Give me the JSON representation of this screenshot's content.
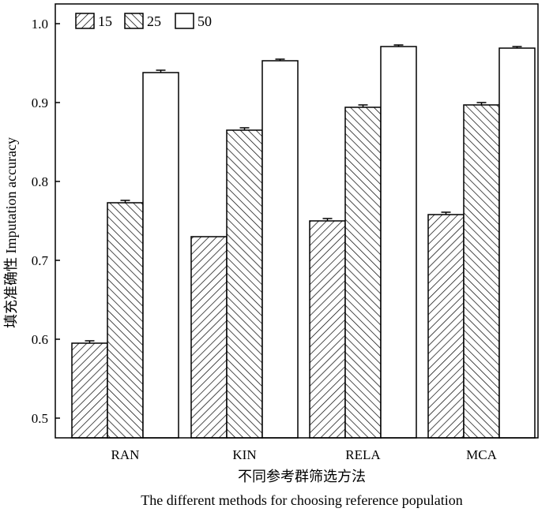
{
  "chart_data": {
    "type": "bar",
    "categories": [
      "RAN",
      "KIN",
      "RELA",
      "MCA"
    ],
    "series": [
      {
        "name": "15",
        "values": [
          0.595,
          0.73,
          0.75,
          0.758
        ],
        "errors": [
          0.003,
          0.0,
          0.003,
          0.003
        ],
        "fill": "hatch-back"
      },
      {
        "name": "25",
        "values": [
          0.773,
          0.865,
          0.894,
          0.897
        ],
        "errors": [
          0.003,
          0.003,
          0.003,
          0.003
        ],
        "fill": "hatch-forward"
      },
      {
        "name": "50",
        "values": [
          0.938,
          0.953,
          0.971,
          0.969
        ],
        "errors": [
          0.003,
          0.002,
          0.002,
          0.002
        ],
        "fill": "white"
      }
    ],
    "ylim": [
      0.475,
      1.025
    ],
    "yticks": [
      "0.5",
      "0.6",
      "0.7",
      "0.8",
      "0.9",
      "1.0"
    ],
    "ylabel": "填充准确性 Imputation accuracy",
    "xlabel_cn": "不同参考群筛选方法",
    "xlabel_en": "The different methods for choosing reference population",
    "legend_position": "top-left",
    "grid": false,
    "colors": {
      "line": "#000000",
      "background": "#ffffff"
    }
  }
}
